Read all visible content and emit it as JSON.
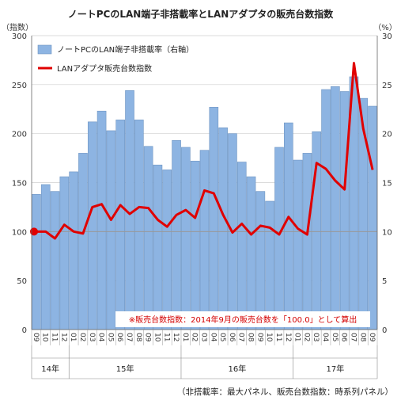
{
  "chart_data": {
    "type": "bar+line",
    "title": "ノートPCのLAN端子非搭載率とLANアダプタの販売台数指数",
    "left_axis_label": "（指数）",
    "right_axis_label": "（%）",
    "left_ylim": [
      0,
      300
    ],
    "left_ticks": [
      "0",
      "50",
      "100",
      "150",
      "200",
      "250",
      "300"
    ],
    "right_ylim": [
      0,
      30
    ],
    "right_ticks": [
      "0",
      "5",
      "10",
      "15",
      "20",
      "25",
      "30"
    ],
    "months": [
      "09",
      "10",
      "11",
      "12",
      "01",
      "02",
      "03",
      "04",
      "05",
      "06",
      "07",
      "08",
      "09",
      "10",
      "11",
      "12",
      "01",
      "02",
      "03",
      "04",
      "05",
      "06",
      "07",
      "08",
      "09",
      "10",
      "11",
      "12",
      "01",
      "02",
      "03",
      "04",
      "05",
      "06",
      "07",
      "08",
      "09"
    ],
    "year_groups": [
      {
        "label": "14年",
        "start": 0,
        "count": 4
      },
      {
        "label": "15年",
        "start": 4,
        "count": 12
      },
      {
        "label": "16年",
        "start": 16,
        "count": 12
      },
      {
        "label": "17年",
        "start": 28,
        "count": 9
      }
    ],
    "series": [
      {
        "name": "ノートPCのLAN端子非搭載率（右軸）",
        "type": "bar",
        "axis": "right",
        "color": "#8db4e2",
        "values": [
          13.8,
          14.8,
          14.1,
          15.6,
          16.1,
          18.0,
          21.2,
          22.3,
          20.3,
          21.4,
          24.4,
          21.4,
          18.7,
          16.8,
          16.3,
          19.3,
          18.6,
          17.2,
          18.3,
          22.7,
          20.6,
          20.0,
          17.1,
          15.6,
          14.1,
          13.1,
          18.6,
          21.1,
          17.3,
          18.0,
          20.2,
          24.5,
          24.8,
          24.3,
          25.8,
          23.6,
          22.8
        ]
      },
      {
        "name": "LANアダプタ販売台数指数",
        "type": "line",
        "axis": "left",
        "color": "#e00000",
        "values": [
          100,
          100,
          93,
          107,
          100,
          98,
          125,
          128,
          112,
          127,
          118,
          125,
          124,
          112,
          105,
          117,
          122,
          114,
          142,
          139,
          117,
          99,
          108,
          97,
          106,
          104,
          97,
          115,
          103,
          97,
          170,
          164,
          152,
          143,
          272,
          205,
          163
        ]
      }
    ],
    "annotation": "※販売台数指数：2014年9月の販売台数を「100.0」として算出",
    "reference_line_value": 100,
    "footnote": "（非搭載率：最大パネル、販売台数指数：時系列パネル）"
  }
}
